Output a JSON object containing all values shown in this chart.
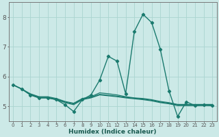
{
  "xlabel": "Humidex (Indice chaleur)",
  "background_color": "#cce9e7",
  "grid_color": "#aad4d0",
  "line_color": "#1a7a6e",
  "xlim": [
    -0.5,
    23.5
  ],
  "ylim": [
    4.5,
    8.5
  ],
  "yticks": [
    5,
    6,
    7,
    8
  ],
  "xticks": [
    0,
    1,
    2,
    3,
    4,
    5,
    6,
    7,
    8,
    9,
    10,
    11,
    12,
    13,
    14,
    15,
    16,
    17,
    18,
    19,
    20,
    21,
    22,
    23
  ],
  "lines": [
    {
      "x": [
        0,
        1,
        2,
        3,
        4,
        5,
        6,
        7,
        8,
        9,
        10,
        11,
        12,
        13,
        14,
        15,
        16,
        17,
        18,
        19,
        20,
        21,
        22,
        23
      ],
      "y": [
        5.72,
        5.58,
        5.38,
        5.28,
        5.28,
        5.22,
        5.05,
        4.82,
        5.22,
        5.38,
        5.88,
        6.68,
        6.52,
        5.42,
        7.52,
        8.1,
        7.82,
        6.92,
        5.52,
        4.65,
        5.15,
        5.02,
        5.05,
        5.02
      ],
      "style": "solid",
      "marker": "D",
      "markersize": 2.2,
      "linewidth": 1.0
    },
    {
      "x": [
        0,
        1,
        2,
        3,
        4,
        5,
        6,
        7,
        8,
        9,
        10,
        11,
        12,
        13,
        14,
        15,
        16,
        17,
        18,
        19,
        20,
        21,
        22,
        23
      ],
      "y": [
        5.72,
        5.58,
        5.38,
        5.28,
        5.28,
        5.22,
        5.12,
        5.05,
        5.22,
        5.28,
        5.38,
        5.35,
        5.32,
        5.28,
        5.25,
        5.22,
        5.18,
        5.12,
        5.08,
        5.02,
        5.02,
        5.02,
        5.02,
        5.02
      ],
      "style": "solid",
      "marker": null,
      "markersize": 0,
      "linewidth": 0.9
    },
    {
      "x": [
        0,
        1,
        2,
        3,
        4,
        5,
        6,
        7,
        8,
        9,
        10,
        11,
        12,
        13,
        14,
        15,
        16,
        17,
        18,
        19,
        20,
        21,
        22,
        23
      ],
      "y": [
        5.72,
        5.58,
        5.4,
        5.3,
        5.3,
        5.24,
        5.14,
        5.08,
        5.24,
        5.3,
        5.4,
        5.37,
        5.34,
        5.3,
        5.27,
        5.24,
        5.2,
        5.14,
        5.1,
        5.04,
        5.04,
        5.04,
        5.04,
        5.04
      ],
      "style": "solid",
      "marker": null,
      "markersize": 0,
      "linewidth": 0.9
    },
    {
      "x": [
        0,
        1,
        2,
        3,
        4,
        5,
        6,
        7,
        8,
        9,
        10,
        11,
        12,
        13,
        14,
        15,
        16,
        17,
        18,
        19,
        20,
        21,
        22,
        23
      ],
      "y": [
        5.72,
        5.58,
        5.42,
        5.32,
        5.32,
        5.26,
        5.16,
        5.1,
        5.26,
        5.32,
        5.45,
        5.42,
        5.38,
        5.32,
        5.28,
        5.26,
        5.22,
        5.16,
        5.12,
        5.06,
        5.06,
        5.06,
        5.06,
        5.06
      ],
      "style": "solid",
      "marker": null,
      "markersize": 0,
      "linewidth": 0.9
    }
  ]
}
